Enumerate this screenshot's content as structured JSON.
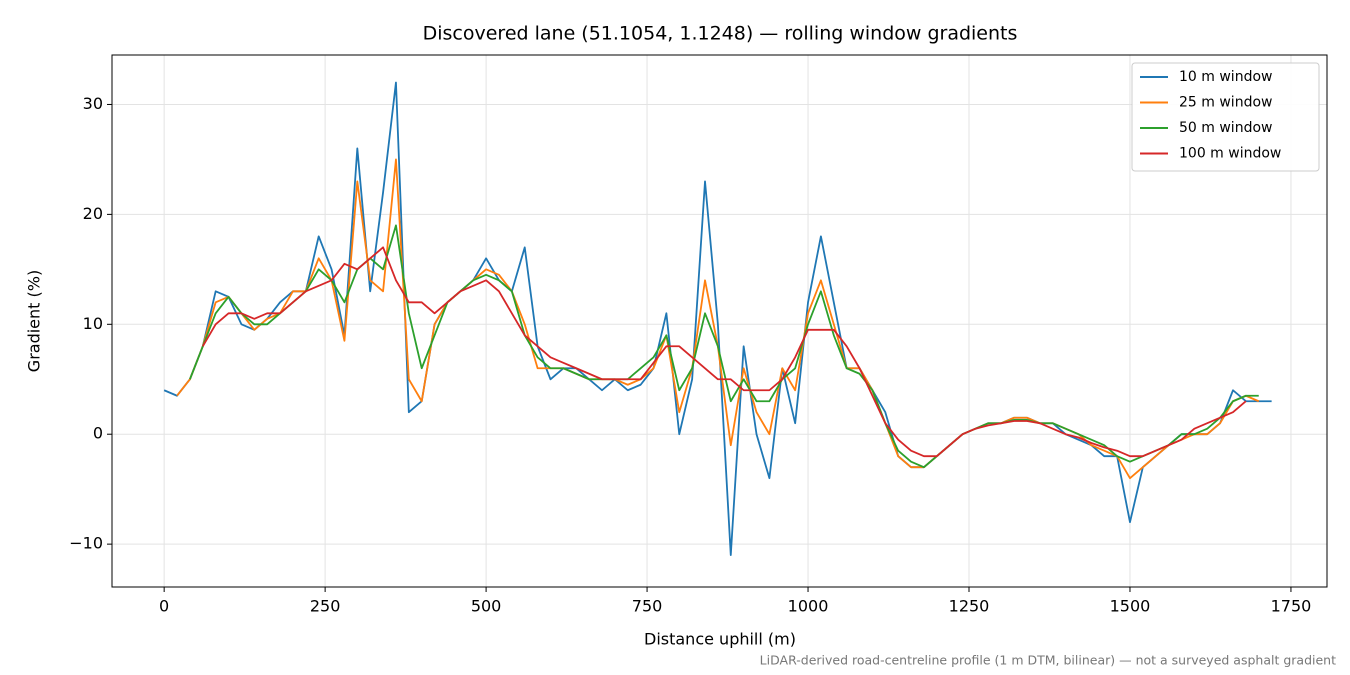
{
  "chart_data": {
    "type": "line",
    "title": "Discovered lane (51.1054, 1.1248) — rolling window gradients",
    "xlabel": "Distance uphill (m)",
    "ylabel": "Gradient (%)",
    "note": "LiDAR-derived road-centreline profile (1 m DTM, bilinear) — not a surveyed asphalt gradient",
    "x": [
      0,
      20,
      40,
      60,
      80,
      100,
      120,
      140,
      160,
      180,
      200,
      220,
      240,
      260,
      280,
      300,
      320,
      340,
      360,
      380,
      400,
      420,
      440,
      460,
      480,
      500,
      520,
      540,
      560,
      580,
      600,
      620,
      640,
      660,
      680,
      700,
      720,
      740,
      760,
      780,
      800,
      820,
      840,
      860,
      880,
      900,
      920,
      940,
      960,
      980,
      1000,
      1020,
      1040,
      1060,
      1080,
      1100,
      1120,
      1140,
      1160,
      1180,
      1200,
      1220,
      1240,
      1260,
      1280,
      1300,
      1320,
      1340,
      1360,
      1380,
      1400,
      1420,
      1440,
      1460,
      1480,
      1500,
      1520,
      1540,
      1560,
      1580,
      1600,
      1620,
      1640,
      1660,
      1680,
      1700,
      1720
    ],
    "series": [
      {
        "name": "10 m window",
        "color": "#1f77b4",
        "values": [
          4,
          3.5,
          5,
          8,
          13,
          12.5,
          10,
          9.5,
          10.5,
          12,
          13,
          13,
          18,
          15,
          9,
          26,
          13,
          22,
          32,
          2,
          3,
          10,
          12,
          13,
          14,
          16,
          14,
          13,
          17,
          8,
          5,
          6,
          6,
          5,
          4,
          5,
          4,
          4.5,
          6,
          11,
          0,
          5,
          23,
          10,
          -11,
          8,
          0,
          -4,
          6,
          1,
          12,
          18,
          12,
          6,
          6,
          4,
          2,
          -2,
          -3,
          -3,
          -2,
          -1,
          0,
          0.5,
          1,
          1,
          1.5,
          1.5,
          1,
          1,
          0,
          -0.5,
          -1,
          -2,
          -2,
          -8,
          -3,
          -2,
          -1,
          0,
          0,
          0,
          1,
          4,
          3,
          3,
          3
        ]
      },
      {
        "name": "25 m window",
        "color": "#ff7f0e",
        "values": [
          null,
          3.5,
          5,
          8,
          12,
          12.5,
          11,
          9.5,
          10.5,
          11,
          13,
          13,
          16,
          14,
          8.5,
          23,
          14,
          13,
          25,
          5,
          3,
          10,
          12,
          13,
          14,
          15,
          14.5,
          13,
          10,
          6,
          6,
          6,
          5.5,
          5,
          5,
          5,
          4.5,
          5,
          6,
          9,
          2,
          6,
          14,
          8,
          -1,
          6,
          2,
          0,
          6,
          4,
          11,
          14,
          10,
          6,
          6,
          4,
          1,
          -2,
          -3,
          -3,
          -2,
          -1,
          0,
          0.5,
          1,
          1,
          1.5,
          1.5,
          1,
          1,
          0.5,
          0,
          -1,
          -1.5,
          -2,
          -4,
          -3,
          -2,
          -1,
          -0.5,
          0,
          0,
          1,
          3,
          3.5,
          3,
          null
        ]
      },
      {
        "name": "50 m window",
        "color": "#2ca02c",
        "values": [
          null,
          null,
          5,
          8,
          11,
          12.5,
          11,
          10,
          10,
          11,
          12,
          13,
          15,
          14,
          12,
          15,
          16,
          15,
          19,
          11,
          6,
          9,
          12,
          13,
          14,
          14.5,
          14,
          13,
          9,
          7,
          6,
          6,
          5.5,
          5,
          5,
          5,
          5,
          6,
          7,
          9,
          4,
          6,
          11,
          8,
          3,
          5,
          3,
          3,
          5,
          6,
          10,
          13,
          9,
          6,
          5.5,
          4,
          1,
          -1.5,
          -2.5,
          -3,
          -2,
          -1,
          0,
          0.5,
          1,
          1,
          1.3,
          1.3,
          1,
          1,
          0.5,
          0,
          -0.5,
          -1,
          -2,
          -2.5,
          -2,
          -1.5,
          -1,
          0,
          0,
          0.5,
          1.5,
          3,
          3.5,
          3.5,
          null
        ]
      },
      {
        "name": "100 m window",
        "color": "#d62728",
        "values": [
          null,
          null,
          null,
          8,
          10,
          11,
          11,
          10.5,
          11,
          11,
          12,
          13,
          13.5,
          14,
          15.5,
          15,
          16,
          17,
          14,
          12,
          12,
          11,
          12,
          13,
          13.5,
          14,
          13,
          11,
          9,
          8,
          7,
          6.5,
          6,
          5.5,
          5,
          5,
          5,
          5,
          6.5,
          8,
          8,
          7,
          6,
          5,
          5,
          4,
          4,
          4,
          5,
          7,
          9.5,
          9.5,
          9.5,
          8,
          6,
          3.5,
          1,
          -0.5,
          -1.5,
          -2,
          -2,
          -1,
          0,
          0.5,
          0.8,
          1,
          1.2,
          1.2,
          1,
          0.5,
          0,
          -0.3,
          -0.8,
          -1.2,
          -1.5,
          -2,
          -2,
          -1.5,
          -1,
          -0.5,
          0.5,
          1,
          1.5,
          2,
          3,
          null,
          null
        ]
      }
    ],
    "xlim": [
      -81,
      1806
    ],
    "ylim": [
      -13.9,
      34.5
    ],
    "xticks": [
      0,
      250,
      500,
      750,
      1000,
      1250,
      1500,
      1750
    ],
    "yticks": [
      {
        "value": -10,
        "label": "−10"
      },
      0,
      10,
      20,
      30
    ],
    "grid": true,
    "legend": "upper right"
  }
}
